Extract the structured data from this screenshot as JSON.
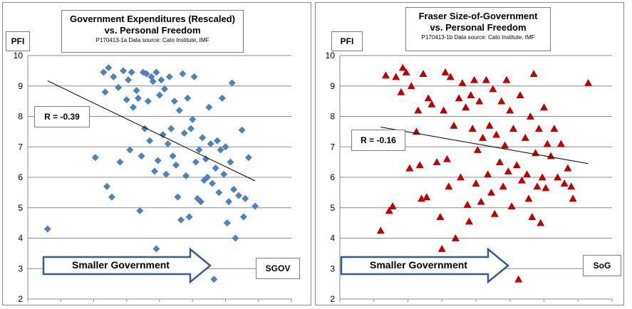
{
  "chart_data": [
    {
      "type": "scatter",
      "title": "Government Expenditures (Rescaled)",
      "subtitle": "vs. Personal Freedom",
      "source_note": "P170413-1a Data source: Cato Institute, IMF",
      "ylabel": "PFI",
      "xlabel": "SGOV",
      "annotation": "R = -0.39",
      "arrow_label": "Smaller Government",
      "xlim": [
        2,
        10
      ],
      "ylim": [
        2,
        10
      ],
      "xticks": [
        "2",
        "3",
        "4",
        "5",
        "6",
        "7",
        "8",
        "9",
        "10"
      ],
      "yticks": [
        "2",
        "3",
        "4",
        "5",
        "6",
        "7",
        "8",
        "9",
        "10"
      ],
      "grid": "horizontal",
      "marker": "diamond",
      "color": "#4f81bd",
      "trendline": {
        "x": [
          2.6,
          8.9
        ],
        "y": [
          9.17,
          5.88
        ]
      },
      "points": [
        [
          2.6,
          4.3
        ],
        [
          4.05,
          6.65
        ],
        [
          4.3,
          9.45
        ],
        [
          4.35,
          8.8
        ],
        [
          4.4,
          5.7
        ],
        [
          4.45,
          9.6
        ],
        [
          4.55,
          5.35
        ],
        [
          4.6,
          9.3
        ],
        [
          4.75,
          8.95
        ],
        [
          4.8,
          6.5
        ],
        [
          4.9,
          9.5
        ],
        [
          5,
          8.55
        ],
        [
          5.05,
          9.2
        ],
        [
          5.1,
          6.9
        ],
        [
          5.15,
          9.45
        ],
        [
          5.2,
          8.3
        ],
        [
          5.3,
          8.85
        ],
        [
          5.35,
          8.6
        ],
        [
          5.4,
          4.9
        ],
        [
          5.45,
          6.7
        ],
        [
          5.5,
          9.45
        ],
        [
          5.55,
          7.6
        ],
        [
          5.6,
          9.4
        ],
        [
          5.65,
          8.5
        ],
        [
          5.7,
          7.2
        ],
        [
          5.75,
          9.3
        ],
        [
          5.8,
          9.15
        ],
        [
          5.85,
          6.2
        ],
        [
          5.9,
          3.65
        ],
        [
          5.9,
          9.45
        ],
        [
          5.95,
          6.55
        ],
        [
          6,
          8.7
        ],
        [
          6.05,
          9.2
        ],
        [
          6.1,
          7.4
        ],
        [
          6.15,
          8.9
        ],
        [
          6.2,
          6.1
        ],
        [
          6.25,
          7.1
        ],
        [
          6.3,
          9.3
        ],
        [
          6.35,
          7.6
        ],
        [
          6.4,
          6.7
        ],
        [
          6.45,
          8.5
        ],
        [
          6.5,
          6.4
        ],
        [
          6.55,
          5.35
        ],
        [
          6.6,
          8.2
        ],
        [
          6.65,
          4.6
        ],
        [
          6.7,
          9.4
        ],
        [
          6.75,
          7.45
        ],
        [
          6.8,
          6.05
        ],
        [
          6.85,
          8.6
        ],
        [
          6.9,
          4.7
        ],
        [
          6.95,
          7.6
        ],
        [
          7,
          7.9
        ],
        [
          7.05,
          9.3
        ],
        [
          7.1,
          6.5
        ],
        [
          7.15,
          5.3
        ],
        [
          7.2,
          6.9
        ],
        [
          7.25,
          5.2
        ],
        [
          7.3,
          7.3
        ],
        [
          7.35,
          5.9
        ],
        [
          7.4,
          6.6
        ],
        [
          7.45,
          6
        ],
        [
          7.5,
          8.3
        ],
        [
          7.55,
          7.1
        ],
        [
          7.6,
          5.8
        ],
        [
          7.65,
          2.65
        ],
        [
          7.7,
          6.3
        ],
        [
          7.75,
          7.2
        ],
        [
          7.8,
          5.5
        ],
        [
          7.85,
          6.9
        ],
        [
          7.9,
          8.6
        ],
        [
          7.95,
          6.1
        ],
        [
          8,
          7
        ],
        [
          8.05,
          4.5
        ],
        [
          8.1,
          5.2
        ],
        [
          8.15,
          6.5
        ],
        [
          8.2,
          9.1
        ],
        [
          8.25,
          5.6
        ],
        [
          8.3,
          4
        ],
        [
          8.4,
          5.4
        ],
        [
          8.5,
          7.55
        ],
        [
          8.55,
          4.7
        ],
        [
          8.6,
          5.3
        ],
        [
          8.7,
          6.65
        ],
        [
          8.9,
          5.05
        ]
      ]
    },
    {
      "type": "scatter",
      "title": "Fraser Size-of-Government",
      "subtitle": "vs. Personal Freedom",
      "source_note": "P170413-1b Data source: Cato Institute, IMF",
      "ylabel": "PFI",
      "xlabel": "SoG",
      "annotation": "R = -0.16",
      "arrow_label": "Smaller Government",
      "xlim": [
        2,
        10
      ],
      "ylim": [
        2,
        10
      ],
      "xticks": [
        "2",
        "3",
        "4",
        "5",
        "6",
        "7",
        "8",
        "9",
        "10"
      ],
      "yticks": [
        "2",
        "3",
        "4",
        "5",
        "6",
        "7",
        "8",
        "9",
        "10"
      ],
      "grid": "horizontal",
      "marker": "triangle",
      "color": "#c00000",
      "trendline": {
        "x": [
          3.2,
          9.3
        ],
        "y": [
          7.65,
          6.45
        ]
      },
      "points": [
        [
          3.2,
          4.25
        ],
        [
          3.35,
          9.35
        ],
        [
          3.45,
          4.9
        ],
        [
          3.55,
          5.05
        ],
        [
          3.65,
          9.3
        ],
        [
          3.8,
          8.8
        ],
        [
          3.85,
          9.6
        ],
        [
          3.95,
          9.45
        ],
        [
          4.05,
          6.3
        ],
        [
          4.1,
          9
        ],
        [
          4.25,
          7.5
        ],
        [
          4.3,
          8.2
        ],
        [
          4.35,
          6.4
        ],
        [
          4.4,
          5.3
        ],
        [
          4.45,
          9.4
        ],
        [
          4.55,
          5.35
        ],
        [
          4.6,
          8.6
        ],
        [
          4.7,
          8.4
        ],
        [
          4.85,
          6.5
        ],
        [
          4.95,
          4.7
        ],
        [
          5,
          3.65
        ],
        [
          5.05,
          8.2
        ],
        [
          5.1,
          9.45
        ],
        [
          5.15,
          6.6
        ],
        [
          5.2,
          5.7
        ],
        [
          5.25,
          9.3
        ],
        [
          5.35,
          7.7
        ],
        [
          5.4,
          4
        ],
        [
          5.5,
          8.6
        ],
        [
          5.55,
          6
        ],
        [
          5.6,
          9.1
        ],
        [
          5.7,
          8.3
        ],
        [
          5.75,
          5.1
        ],
        [
          5.8,
          4.55
        ],
        [
          5.85,
          8.7
        ],
        [
          5.9,
          7.6
        ],
        [
          5.95,
          9.2
        ],
        [
          6,
          5.8
        ],
        [
          6.05,
          6.9
        ],
        [
          6.1,
          8.5
        ],
        [
          6.15,
          5.2
        ],
        [
          6.2,
          7.3
        ],
        [
          6.3,
          9.2
        ],
        [
          6.35,
          6.1
        ],
        [
          6.4,
          7.7
        ],
        [
          6.45,
          5.5
        ],
        [
          6.5,
          8.9
        ],
        [
          6.55,
          4.8
        ],
        [
          6.6,
          7.4
        ],
        [
          6.7,
          6.5
        ],
        [
          6.75,
          8.5
        ],
        [
          6.8,
          5.7
        ],
        [
          6.85,
          7.05
        ],
        [
          6.9,
          9.2
        ],
        [
          6.95,
          6.2
        ],
        [
          7,
          8.2
        ],
        [
          7.05,
          5.05
        ],
        [
          7.1,
          7.6
        ],
        [
          7.2,
          6.4
        ],
        [
          7.25,
          2.65
        ],
        [
          7.3,
          8.7
        ],
        [
          7.35,
          5.9
        ],
        [
          7.45,
          7.3
        ],
        [
          7.5,
          6.1
        ],
        [
          7.55,
          5.3
        ],
        [
          7.6,
          8
        ],
        [
          7.65,
          4.7
        ],
        [
          7.7,
          9.4
        ],
        [
          7.75,
          6.8
        ],
        [
          7.8,
          5.7
        ],
        [
          7.85,
          7.6
        ],
        [
          7.9,
          4.5
        ],
        [
          7.95,
          6
        ],
        [
          8,
          8.3
        ],
        [
          8.05,
          5.65
        ],
        [
          8.1,
          7.1
        ],
        [
          8.2,
          6.7
        ],
        [
          8.3,
          7.6
        ],
        [
          8.4,
          6
        ],
        [
          8.5,
          7.1
        ],
        [
          8.6,
          5.8
        ],
        [
          8.7,
          6.3
        ],
        [
          8.8,
          5.7
        ],
        [
          8.85,
          5.3
        ],
        [
          9.3,
          9.1
        ]
      ]
    }
  ]
}
